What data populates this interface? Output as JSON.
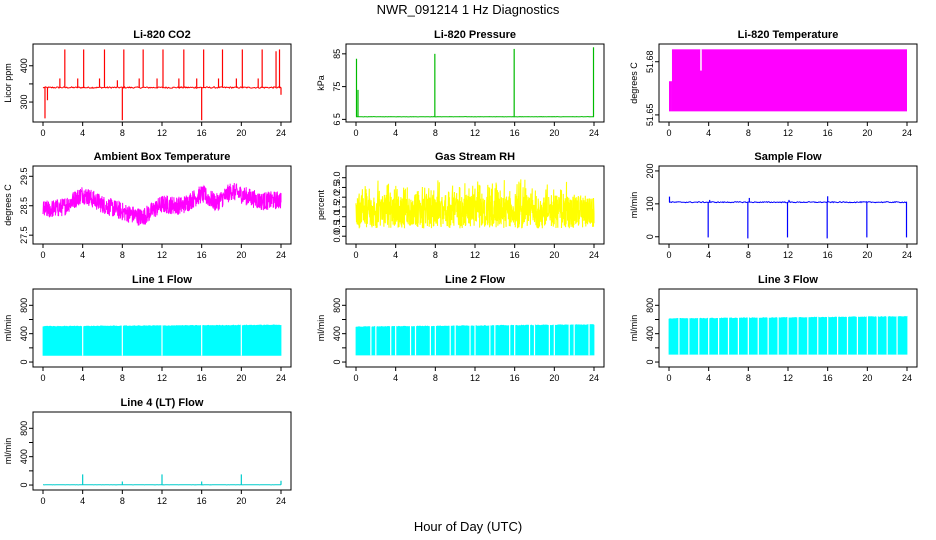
{
  "figure": {
    "title": "NWR_091214  1 Hz Diagnostics",
    "xlabel": "Hour of Day (UTC)"
  },
  "chart_data": [
    {
      "type": "line",
      "title": "Li-820 CO2",
      "ylabel": "Licor ppm",
      "color": "#ff0000",
      "xlim": [
        0,
        24
      ],
      "ylim": [
        245,
        460
      ],
      "xticks": [
        0,
        4,
        8,
        12,
        16,
        20,
        24
      ],
      "yticks": [
        300,
        350,
        400
      ],
      "yticklabels": [
        "300",
        "",
        "400"
      ],
      "baseline": 340,
      "noise": 4,
      "spikes": [
        {
          "x": 0.2,
          "y": 255
        },
        {
          "x": 0.45,
          "y": 305
        },
        {
          "x": 1.7,
          "y": 365
        },
        {
          "x": 2.2,
          "y": 445
        },
        {
          "x": 3.5,
          "y": 365
        },
        {
          "x": 4.1,
          "y": 445
        },
        {
          "x": 5.7,
          "y": 365
        },
        {
          "x": 6.2,
          "y": 445
        },
        {
          "x": 7.5,
          "y": 360
        },
        {
          "x": 8.0,
          "y": 250
        },
        {
          "x": 8.15,
          "y": 445
        },
        {
          "x": 9.7,
          "y": 365
        },
        {
          "x": 10.1,
          "y": 445
        },
        {
          "x": 11.5,
          "y": 365
        },
        {
          "x": 12.1,
          "y": 445
        },
        {
          "x": 13.7,
          "y": 365
        },
        {
          "x": 14.2,
          "y": 445
        },
        {
          "x": 15.5,
          "y": 365
        },
        {
          "x": 16.0,
          "y": 250
        },
        {
          "x": 16.2,
          "y": 445
        },
        {
          "x": 17.7,
          "y": 365
        },
        {
          "x": 18.1,
          "y": 445
        },
        {
          "x": 19.5,
          "y": 365
        },
        {
          "x": 20.1,
          "y": 445
        },
        {
          "x": 21.7,
          "y": 365
        },
        {
          "x": 22.1,
          "y": 445
        },
        {
          "x": 23.5,
          "y": 440
        },
        {
          "x": 23.85,
          "y": 445
        },
        {
          "x": 24.0,
          "y": 320
        }
      ]
    },
    {
      "type": "line",
      "title": "Li-820 Pressure",
      "ylabel": "kPa",
      "color": "#00bb00",
      "xlim": [
        0,
        24
      ],
      "ylim": [
        64.2,
        88
      ],
      "xticks": [
        0,
        4,
        8,
        12,
        16,
        20,
        24
      ],
      "yticks": [
        65,
        75,
        85
      ],
      "yticklabels": [
        "6 5",
        "75",
        "85"
      ],
      "baseline": 65.8,
      "noise": 0.1,
      "spikes": [
        {
          "x": 0.05,
          "y": 83.5
        },
        {
          "x": 0.2,
          "y": 74
        },
        {
          "x": 7.95,
          "y": 85
        },
        {
          "x": 15.95,
          "y": 86.5
        },
        {
          "x": 23.95,
          "y": 87
        }
      ]
    },
    {
      "type": "area",
      "title": "Li-820 Temperature",
      "ylabel": "degrees C",
      "color": "#ff00ff",
      "xlim": [
        0,
        24
      ],
      "ylim": [
        51.646,
        51.69
      ],
      "xticks": [
        0,
        4,
        8,
        12,
        16,
        20,
        24
      ],
      "yticks": [
        51.65,
        51.68
      ],
      "yticklabels": [
        "51.65",
        "51.68"
      ],
      "low": 51.652,
      "high": 51.687,
      "gaps": [
        {
          "x0": 0.0,
          "x1": 0.1,
          "y": 51.669
        },
        {
          "x0": 0.1,
          "x1": 0.3,
          "y": 51.678
        },
        {
          "x0": 3.15,
          "x1": 3.3,
          "y": 51.675
        }
      ]
    },
    {
      "type": "line",
      "title": "Ambient Box Temperature",
      "ylabel": "degrees C",
      "color": "#ff00ff",
      "xlim": [
        0,
        24
      ],
      "ylim": [
        27.2,
        29.85
      ],
      "xticks": [
        0,
        4,
        8,
        12,
        16,
        20,
        24
      ],
      "yticks": [
        27.5,
        28.5,
        29.5
      ],
      "yticklabels": [
        "27.5",
        "28.5",
        "29.5"
      ],
      "profile": [
        {
          "x": 0,
          "y": 28.35
        },
        {
          "x": 2,
          "y": 28.45
        },
        {
          "x": 4,
          "y": 28.9
        },
        {
          "x": 6,
          "y": 28.55
        },
        {
          "x": 8,
          "y": 28.3
        },
        {
          "x": 10,
          "y": 28.1
        },
        {
          "x": 12,
          "y": 28.55
        },
        {
          "x": 14,
          "y": 28.5
        },
        {
          "x": 16,
          "y": 28.9
        },
        {
          "x": 17.5,
          "y": 28.6
        },
        {
          "x": 19,
          "y": 29.0
        },
        {
          "x": 22,
          "y": 28.65
        },
        {
          "x": 24,
          "y": 28.7
        }
      ],
      "noise": 0.45
    },
    {
      "type": "line",
      "title": "Gas Stream RH",
      "ylabel": "percent",
      "color": "#ffff00",
      "xlim": [
        0,
        24
      ],
      "ylim": [
        -0.4,
        3.6
      ],
      "xticks": [
        0,
        4,
        8,
        12,
        16,
        20,
        24
      ],
      "yticks": [
        0.0,
        0.5,
        1.0,
        1.5,
        2.0,
        2.5,
        3.0
      ],
      "yticklabels": [
        "0.0",
        "0.5",
        "1.0",
        "1.5",
        "2.0",
        "2.5",
        "3.0"
      ],
      "low": 0.4,
      "high": 3.1,
      "extremes": [
        -0.1,
        3.3
      ]
    },
    {
      "type": "line",
      "title": "Sample Flow",
      "ylabel": "ml/min",
      "color": "#0000ff",
      "xlim": [
        0,
        24
      ],
      "ylim": [
        -22,
        215
      ],
      "xticks": [
        0,
        4,
        8,
        12,
        16,
        20,
        24
      ],
      "yticks": [
        0,
        100,
        200
      ],
      "yticklabels": [
        "0",
        "100",
        "200"
      ],
      "baseline": 105,
      "noise": 3,
      "dips": [
        {
          "x": 3.95,
          "y": -2
        },
        {
          "x": 7.95,
          "y": -5
        },
        {
          "x": 11.95,
          "y": -2
        },
        {
          "x": 15.95,
          "y": -5
        },
        {
          "x": 19.95,
          "y": -2
        },
        {
          "x": 23.95,
          "y": -2
        }
      ],
      "spikes": [
        {
          "x": 0.05,
          "y": 122
        },
        {
          "x": 8.1,
          "y": 118
        },
        {
          "x": 16.0,
          "y": 123
        },
        {
          "x": 4.1,
          "y": 112
        },
        {
          "x": 12.1,
          "y": 112
        }
      ]
    },
    {
      "type": "area",
      "title": "Line 1 Flow",
      "ylabel": "ml/min",
      "color": "#00ffff",
      "xlim": [
        0,
        24
      ],
      "ylim": [
        -70,
        1030
      ],
      "xticks": [
        0,
        4,
        8,
        12,
        16,
        20,
        24
      ],
      "yticks": [
        0,
        200,
        400,
        600,
        800
      ],
      "yticklabels": [
        "0",
        "",
        "400",
        "",
        "800"
      ],
      "low": 95,
      "high": 500,
      "high_end": 520,
      "gaps_at": [
        0,
        4,
        8,
        12,
        16,
        20,
        24
      ]
    },
    {
      "type": "area",
      "title": "Line 2 Flow",
      "ylabel": "ml/min",
      "color": "#00ffff",
      "xlim": [
        0,
        24
      ],
      "ylim": [
        -70,
        1030
      ],
      "xticks": [
        0,
        4,
        8,
        12,
        16,
        20,
        24
      ],
      "yticks": [
        0,
        200,
        400,
        600,
        800
      ],
      "yticklabels": [
        "0",
        "",
        "400",
        "",
        "800"
      ],
      "low": 100,
      "high": 495,
      "high_end": 525,
      "gaps_at": [
        0,
        1.5,
        2,
        3.5,
        4,
        5.5,
        6,
        7.5,
        8,
        9.5,
        10,
        11.5,
        12,
        13.5,
        14,
        15.5,
        16,
        17.5,
        18,
        19.5,
        20,
        21.5,
        22,
        23.5
      ]
    },
    {
      "type": "area",
      "title": "Line 3 Flow",
      "ylabel": "ml/min",
      "color": "#00ffff",
      "xlim": [
        0,
        24
      ],
      "ylim": [
        -70,
        1030
      ],
      "xticks": [
        0,
        4,
        8,
        12,
        16,
        20,
        24
      ],
      "yticks": [
        0,
        200,
        400,
        600,
        800
      ],
      "yticklabels": [
        "0",
        "",
        "400",
        "",
        "800"
      ],
      "low": 110,
      "high": 610,
      "high_end": 640,
      "gaps_at": [
        0,
        1,
        2,
        3,
        4,
        5,
        6,
        7,
        8,
        9,
        10,
        11,
        12,
        13,
        14,
        15,
        16,
        17,
        18,
        19,
        20,
        21,
        22,
        23
      ]
    },
    {
      "type": "line",
      "title": "Line 4 (LT) Flow",
      "ylabel": "ml/min",
      "color": "#00cccc",
      "xlim": [
        0,
        24
      ],
      "ylim": [
        -70,
        1030
      ],
      "xticks": [
        0,
        4,
        8,
        12,
        16,
        20,
        24
      ],
      "yticks": [
        0,
        200,
        400,
        600,
        800
      ],
      "yticklabels": [
        "0",
        "",
        "400",
        "",
        "800"
      ],
      "baseline": 3,
      "noise": 1,
      "spikes": [
        {
          "x": 4.0,
          "y": 150
        },
        {
          "x": 8.0,
          "y": 50
        },
        {
          "x": 12.0,
          "y": 150
        },
        {
          "x": 16.0,
          "y": 50
        },
        {
          "x": 20.0,
          "y": 150
        },
        {
          "x": 24.0,
          "y": 60
        }
      ]
    }
  ]
}
